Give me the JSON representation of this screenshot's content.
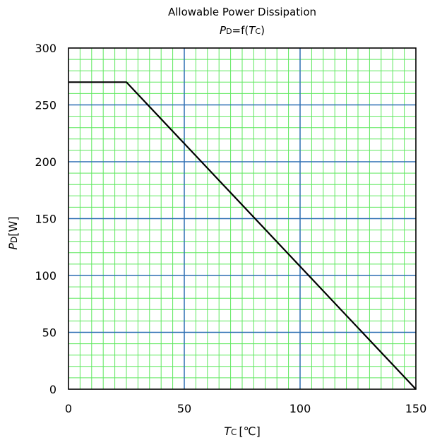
{
  "chart_data": {
    "type": "line",
    "title": "Allowable Power Dissipation",
    "subtitle": {
      "main": "P",
      "sub": "D",
      "mid": "=f(",
      "var": "T",
      "var_sub": "C",
      "end": ")"
    },
    "ylabel": {
      "main": "P",
      "sub": "D",
      "unit": "[W]"
    },
    "xlabel": {
      "main": "T",
      "sub": "C",
      "unit": "[℃]"
    },
    "xlim": [
      0,
      150
    ],
    "ylim": [
      0,
      300
    ],
    "x_ticks": [
      0,
      50,
      100,
      150
    ],
    "y_ticks": [
      0,
      50,
      100,
      150,
      200,
      250,
      300
    ],
    "grid": true,
    "colors": {
      "major_grid": "#2e6fb3",
      "minor_grid": "#5ee85e",
      "line": "#000000",
      "frame": "#000000"
    },
    "series": [
      {
        "x": [
          0,
          25,
          150
        ],
        "y": [
          270,
          270,
          0
        ]
      }
    ]
  }
}
